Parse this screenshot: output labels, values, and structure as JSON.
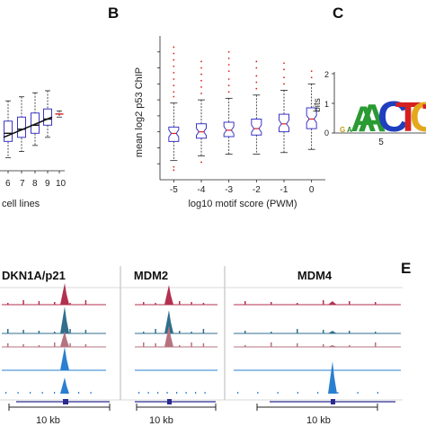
{
  "panel_letters": {
    "b": "B",
    "c": "C",
    "e": "E"
  },
  "colors": {
    "box": "#3a35c9",
    "median": "#111111",
    "outlier": "#d62020",
    "track_red": "#b3304f",
    "track_teal": "#2f6f8c",
    "track_mauve": "#b4737f",
    "track_blue": "#2a7fd0",
    "gene_line": "#2a2a90"
  },
  "panel_a": {
    "x_ticks": [
      "6",
      "7",
      "8",
      "9",
      "10"
    ],
    "x_label": "cell lines"
  },
  "panel_c": {
    "y_label": "bits",
    "y_ticks": [
      "0",
      "1",
      "2"
    ],
    "x_tick": "5",
    "logo_letters": [
      "A",
      "C",
      "A",
      "T",
      "G",
      "T"
    ]
  },
  "genes": {
    "g1": "DKN1A/p21",
    "g2": "MDM2",
    "g3": "MDM4"
  },
  "scale_labels": {
    "s1": "10 kb",
    "s2": "10 kb",
    "s3": "10 kb"
  },
  "chart_data": [
    {
      "type": "box",
      "panel": "B",
      "title": "",
      "xlabel": "log10 motif score (PWM)",
      "ylabel": "mean log2 p53 ChIP",
      "categories": [
        "-5",
        "-4",
        "-3",
        "-2",
        "-1",
        "0"
      ],
      "stats": [
        {
          "min": 1.2,
          "q1": 2.4,
          "median": 2.9,
          "q3": 3.3,
          "max": 4.8
        },
        {
          "min": 1.5,
          "q1": 2.6,
          "median": 3.0,
          "q3": 3.5,
          "max": 5.0
        },
        {
          "min": 1.6,
          "q1": 2.7,
          "median": 3.1,
          "q3": 3.6,
          "max": 5.1
        },
        {
          "min": 1.6,
          "q1": 2.8,
          "median": 3.2,
          "q3": 3.8,
          "max": 5.3
        },
        {
          "min": 1.7,
          "q1": 3.0,
          "median": 3.5,
          "q3": 4.1,
          "max": 5.6
        },
        {
          "min": 1.9,
          "q1": 3.2,
          "median": 3.8,
          "q3": 4.5,
          "max": 6.0
        }
      ],
      "outliers": [
        [
          5.2,
          5.5,
          5.9,
          6.3,
          6.7,
          7.1,
          7.5,
          7.9,
          8.3,
          0.8,
          0.6
        ],
        [
          5.4,
          5.8,
          6.2,
          6.6,
          7.0,
          7.4,
          1.1
        ],
        [
          5.5,
          5.9,
          6.3,
          6.8,
          7.2,
          7.6,
          8.0
        ],
        [
          5.7,
          6.1,
          6.5,
          7.0,
          7.4
        ],
        [
          6.0,
          6.4,
          6.9,
          7.3
        ],
        [
          6.4,
          6.8
        ]
      ],
      "ylim": [
        0,
        9
      ],
      "grid": false
    },
    {
      "type": "box",
      "panel": "A",
      "title": "",
      "xlabel": "cell lines",
      "ylabel": "",
      "categories": [
        "6",
        "7",
        "8",
        "9",
        "10"
      ],
      "stats": [
        {
          "min": 2.2,
          "q1": 3.0,
          "median": 3.4,
          "q3": 4.0,
          "max": 5.0
        },
        {
          "min": 2.5,
          "q1": 3.2,
          "median": 3.6,
          "q3": 4.2,
          "max": 5.2
        },
        {
          "min": 2.8,
          "q1": 3.4,
          "median": 3.8,
          "q3": 4.4,
          "max": 5.4
        },
        {
          "min": 3.2,
          "q1": 3.8,
          "median": 4.1,
          "q3": 4.6,
          "max": 5.5
        },
        {
          "min": 4.2,
          "q1": 4.3,
          "median": 4.35,
          "q3": 4.4,
          "max": 4.5
        }
      ]
    }
  ]
}
